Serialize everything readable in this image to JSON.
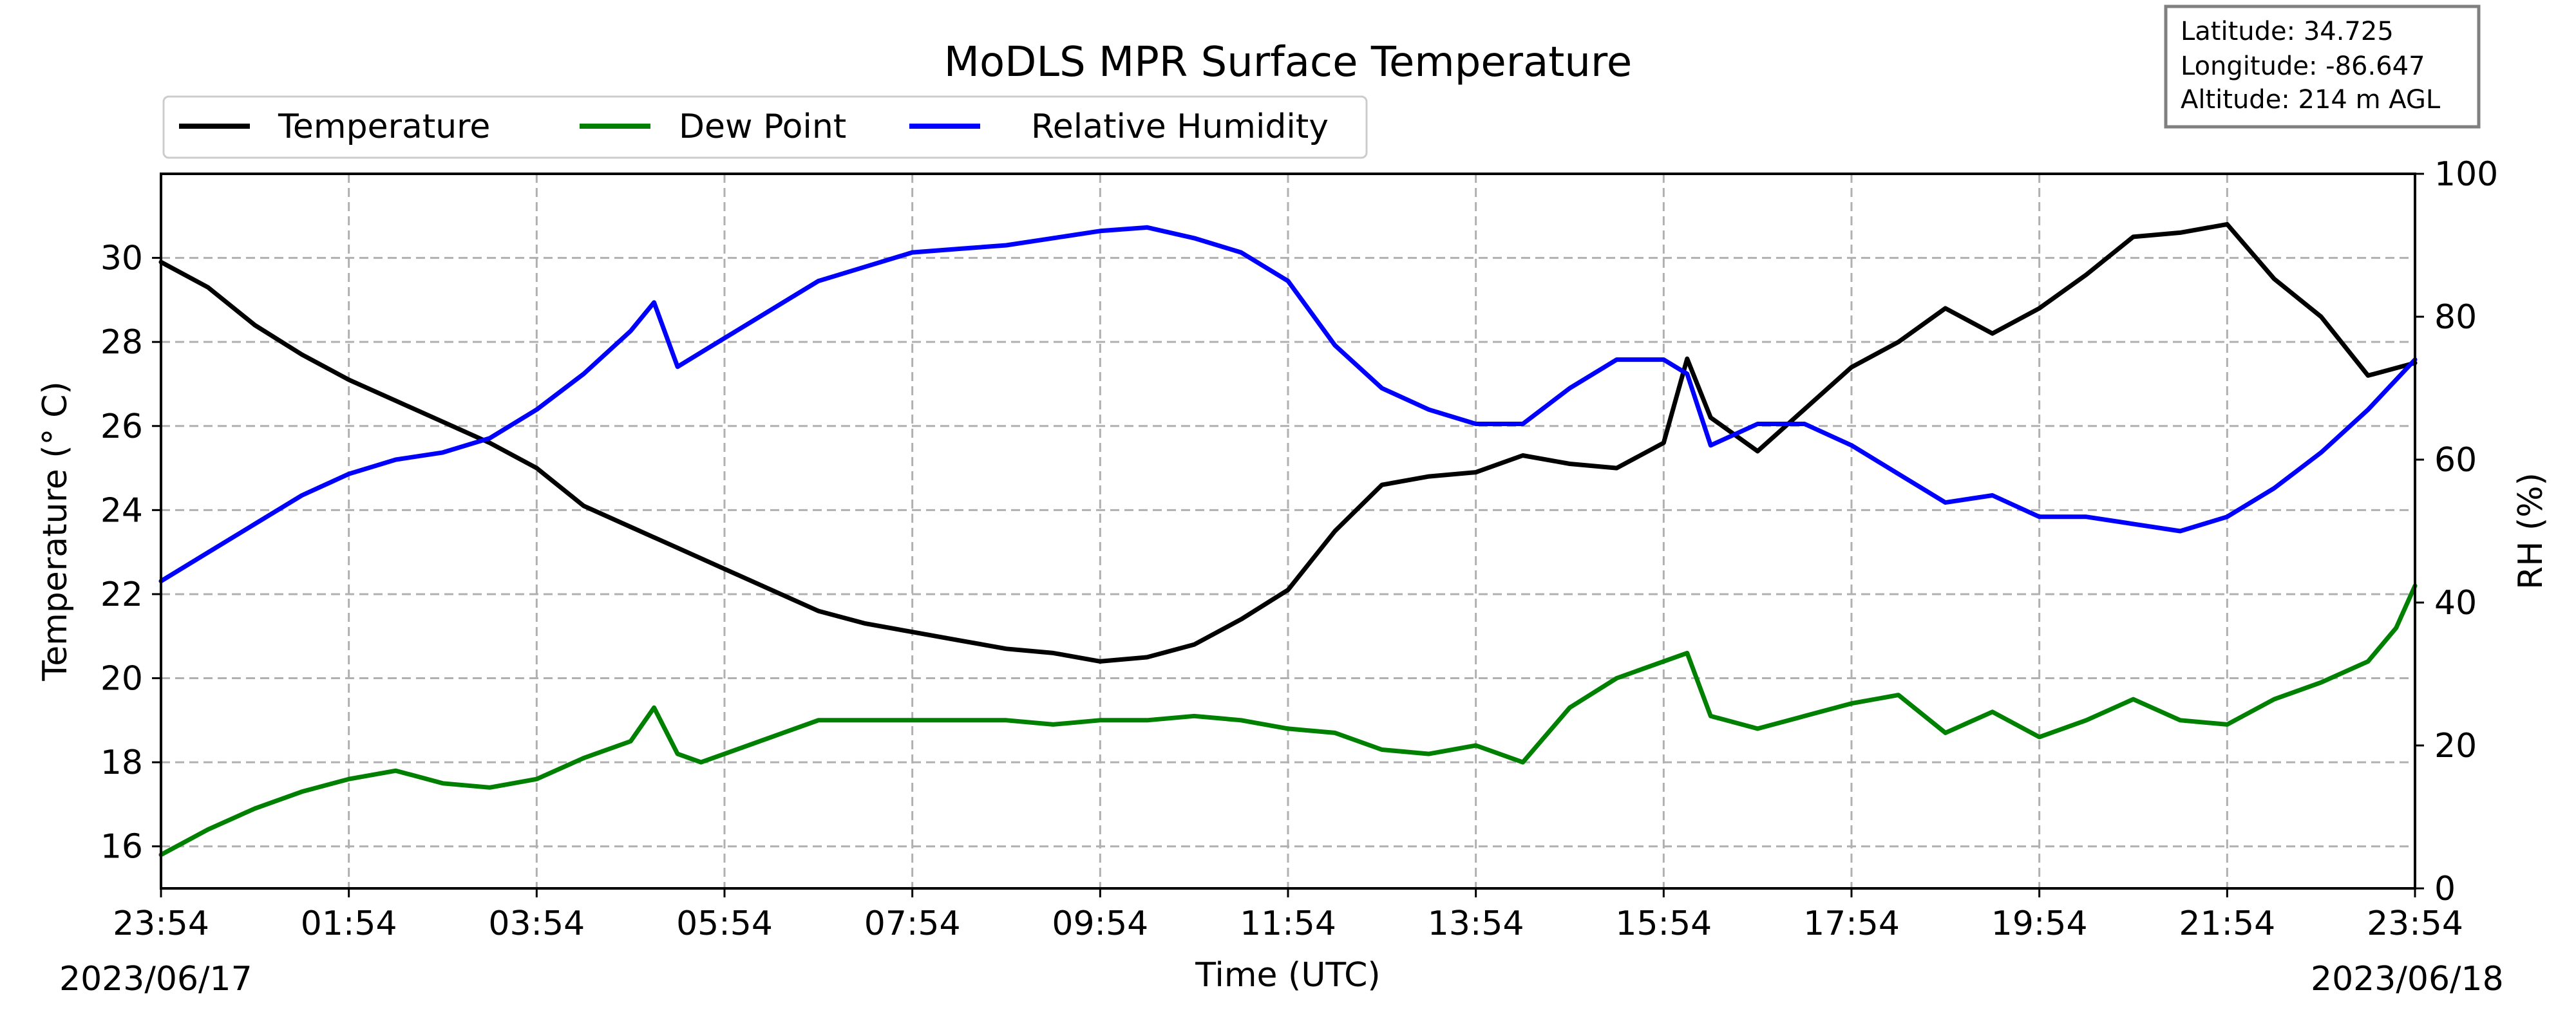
{
  "chart_data": {
    "type": "line",
    "title": "MoDLS MPR Surface Temperature",
    "xlabel": "Time (UTC)",
    "ylabel_left": "Temperature ($^\\circ$C)",
    "ylabel_left_display": "Temperature (° C)",
    "ylabel_right": "RH (%)",
    "x_start": "2023-06-17 23:54",
    "x_end": "2023-06-18 23:54",
    "xlim_hours": [
      0,
      24
    ],
    "x_tick_labels": [
      "23:54",
      "01:54",
      "03:54",
      "05:54",
      "07:54",
      "09:54",
      "11:54",
      "13:54",
      "15:54",
      "17:54",
      "19:54",
      "21:54",
      "23:54"
    ],
    "date_left": "2023/06/17",
    "date_right": "2023/06/18",
    "ylim_left": [
      15,
      32
    ],
    "ylim_right": [
      0,
      100
    ],
    "y_left_ticks": [
      16,
      18,
      20,
      22,
      24,
      26,
      28,
      30
    ],
    "y_right_ticks": [
      0,
      20,
      40,
      60,
      80,
      100
    ],
    "grid": true,
    "legend_position": "top-left, above plot",
    "info_box": {
      "latitude": "Latitude: 34.725",
      "longitude": "Longitude: -86.647",
      "altitude": "Altitude: 214 m AGL"
    },
    "series": [
      {
        "name": "Temperature",
        "axis": "left",
        "color": "#000000",
        "hours": [
          0,
          0.5,
          1,
          1.5,
          2,
          2.5,
          3,
          3.5,
          4,
          4.5,
          5,
          5.5,
          6,
          6.5,
          7,
          7.5,
          8,
          8.5,
          9,
          9.5,
          10,
          10.5,
          11,
          11.5,
          12,
          12.5,
          13,
          13.5,
          14,
          14.5,
          15,
          15.5,
          16,
          16.25,
          16.5,
          17,
          17.5,
          18,
          18.5,
          19,
          19.5,
          20,
          20.5,
          21,
          21.5,
          22,
          22.5,
          23,
          23.5,
          24
        ],
        "values": [
          29.9,
          29.3,
          28.4,
          27.7,
          27.1,
          26.6,
          26.1,
          25.6,
          25.0,
          24.1,
          23.6,
          23.1,
          22.6,
          22.1,
          21.6,
          21.3,
          21.1,
          20.9,
          20.7,
          20.6,
          20.4,
          20.5,
          20.8,
          21.4,
          22.1,
          23.5,
          24.6,
          24.8,
          24.9,
          25.3,
          25.1,
          25.0,
          25.6,
          27.6,
          26.2,
          25.4,
          26.4,
          27.4,
          28.0,
          28.8,
          28.2,
          28.8,
          29.6,
          30.5,
          30.6,
          30.8,
          29.5,
          28.6,
          27.2,
          27.5
        ]
      },
      {
        "name": "Dew Point",
        "axis": "left",
        "color": "#008000",
        "hours": [
          0,
          0.5,
          1,
          1.5,
          2,
          2.5,
          3,
          3.5,
          4,
          4.5,
          5,
          5.25,
          5.5,
          5.75,
          6,
          6.5,
          7,
          7.5,
          8,
          8.5,
          9,
          9.5,
          10,
          10.5,
          11,
          11.5,
          12,
          12.5,
          13,
          13.5,
          14,
          14.5,
          15,
          15.5,
          16,
          16.25,
          16.5,
          17,
          17.5,
          18,
          18.5,
          19,
          19.5,
          20,
          20.5,
          21,
          21.5,
          22,
          22.5,
          23,
          23.5,
          23.8,
          24
        ],
        "values": [
          15.8,
          16.4,
          16.9,
          17.3,
          17.6,
          17.8,
          17.5,
          17.4,
          17.6,
          18.1,
          18.5,
          19.3,
          18.2,
          18.0,
          18.2,
          18.6,
          19.0,
          19.0,
          19.0,
          19.0,
          19.0,
          18.9,
          19.0,
          19.0,
          19.1,
          19.0,
          18.8,
          18.7,
          18.3,
          18.2,
          18.4,
          18.0,
          19.3,
          20.0,
          20.4,
          20.6,
          19.1,
          18.8,
          19.1,
          19.4,
          19.6,
          18.7,
          19.2,
          18.6,
          19.0,
          19.5,
          19.0,
          18.9,
          19.5,
          19.9,
          20.4,
          21.2,
          22.2
        ]
      },
      {
        "name": "Relative Humidity",
        "axis": "right",
        "color": "#0000ff",
        "hours": [
          0,
          0.5,
          1,
          1.5,
          2,
          2.5,
          3,
          3.5,
          4,
          4.5,
          5,
          5.25,
          5.5,
          5.75,
          6,
          6.5,
          7,
          7.5,
          8,
          8.5,
          9,
          9.5,
          10,
          10.5,
          11,
          11.5,
          12,
          12.5,
          13,
          13.5,
          14,
          14.5,
          15,
          15.5,
          16,
          16.25,
          16.5,
          17,
          17.5,
          18,
          18.5,
          19,
          19.5,
          20,
          20.5,
          21,
          21.5,
          22,
          22.5,
          23,
          23.5,
          24
        ],
        "values": [
          43,
          47,
          51,
          55,
          58,
          60,
          61,
          63,
          67,
          72,
          78,
          82,
          73,
          75,
          77,
          81,
          85,
          87,
          89,
          89.5,
          90,
          91,
          92,
          92.5,
          91,
          89,
          85,
          76,
          70,
          67,
          65,
          65,
          70,
          74,
          74,
          72,
          62,
          65,
          65,
          62,
          58,
          54,
          55,
          52,
          52,
          51,
          50,
          52,
          56,
          61,
          67,
          74
        ]
      }
    ]
  }
}
